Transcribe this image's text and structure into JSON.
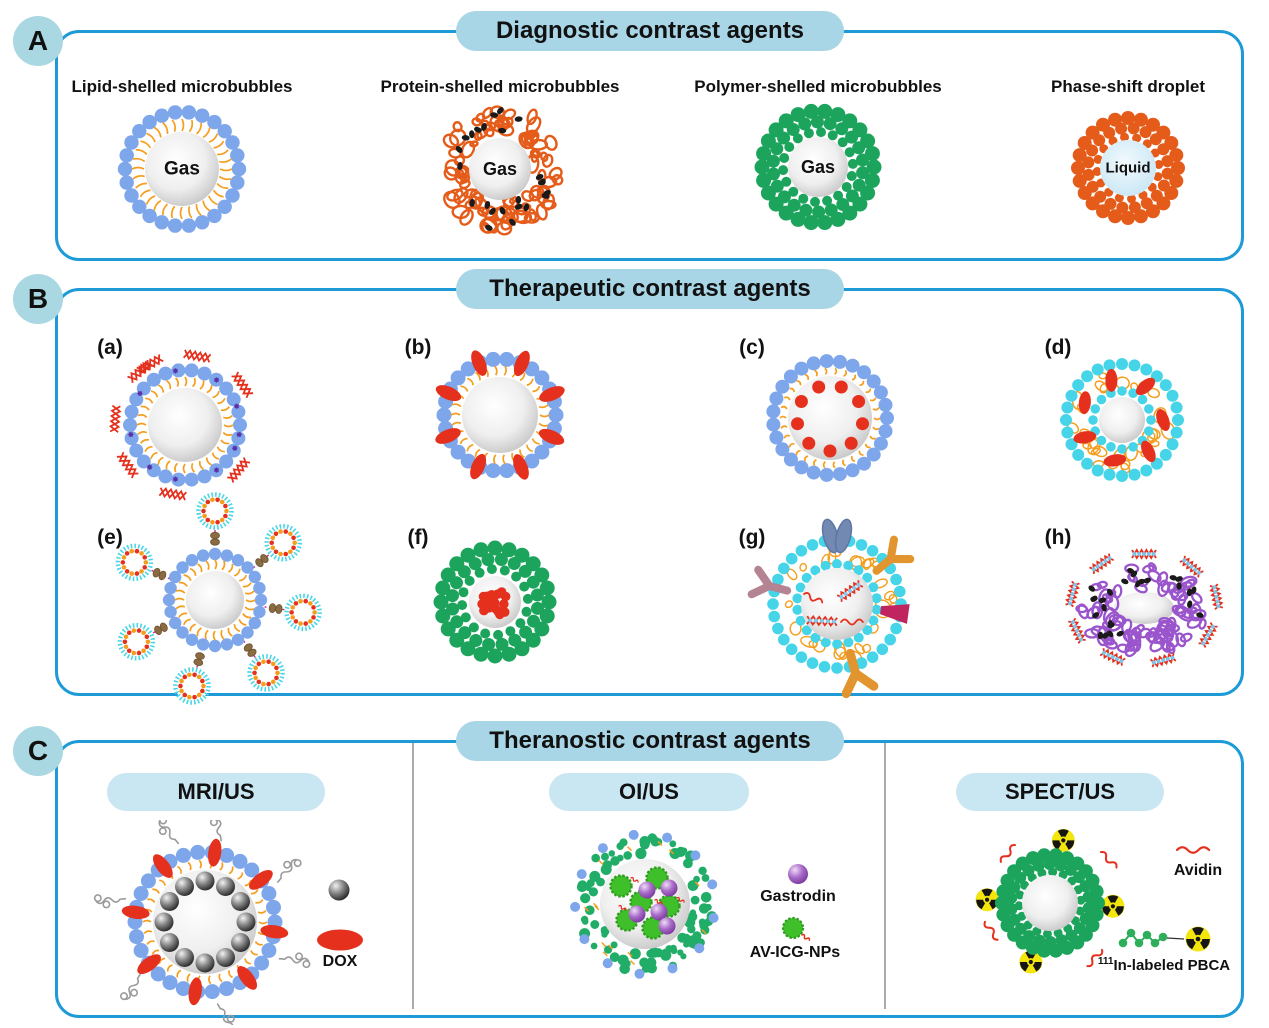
{
  "figure": {
    "panel_a": {
      "badge": "A",
      "title": "Diagnostic contrast agents",
      "items": [
        {
          "label": "Lipid-shelled microbubbles",
          "core": "Gas"
        },
        {
          "label": "Protein-shelled microbubbles",
          "core": "Gas"
        },
        {
          "label": "Polymer-shelled microbubbles",
          "core": "Gas"
        },
        {
          "label": "Phase-shift droplet",
          "core": "Liquid"
        }
      ]
    },
    "panel_b": {
      "badge": "B",
      "title": "Therapeutic contrast agents",
      "items": [
        {
          "label": "(a)"
        },
        {
          "label": "(b)"
        },
        {
          "label": "(c)"
        },
        {
          "label": "(d)"
        },
        {
          "label": "(e)"
        },
        {
          "label": "(f)"
        },
        {
          "label": "(g)"
        },
        {
          "label": "(h)"
        }
      ]
    },
    "panel_c": {
      "badge": "C",
      "title": "Theranostic contrast agents",
      "sections": [
        {
          "title": "MRI/US",
          "legend": [
            {
              "icon": "nanoparticle-sphere-icon",
              "label": ""
            },
            {
              "icon": "dox-icon",
              "label": "DOX"
            }
          ]
        },
        {
          "title": "OI/US",
          "legend": [
            {
              "icon": "gastrodin-icon",
              "label": "Gastrodin"
            },
            {
              "icon": "av-icg-np-icon",
              "label": "AV-ICG-NPs"
            }
          ]
        },
        {
          "title": "SPECT/US",
          "legend": [
            {
              "icon": "avidin-icon",
              "label": "Avidin"
            },
            {
              "icon": "in111-pbca-icon",
              "label": "In-labeled PBCA",
              "label_sup": "111"
            }
          ]
        }
      ]
    },
    "colors": {
      "border_blue": "#1E9BD7",
      "header_fill": "#A9D6E6",
      "subheader_fill": "#C9E7F2",
      "lipid_blue": "#7EA6EA",
      "lipid_tail_orange": "#F59E1E",
      "protein_orange": "#E55C1A",
      "polymer_green": "#1CA45C",
      "cyan_shell": "#45D4E8",
      "drug_red": "#E5301E",
      "purple_shell": "#9A55CC"
    }
  }
}
